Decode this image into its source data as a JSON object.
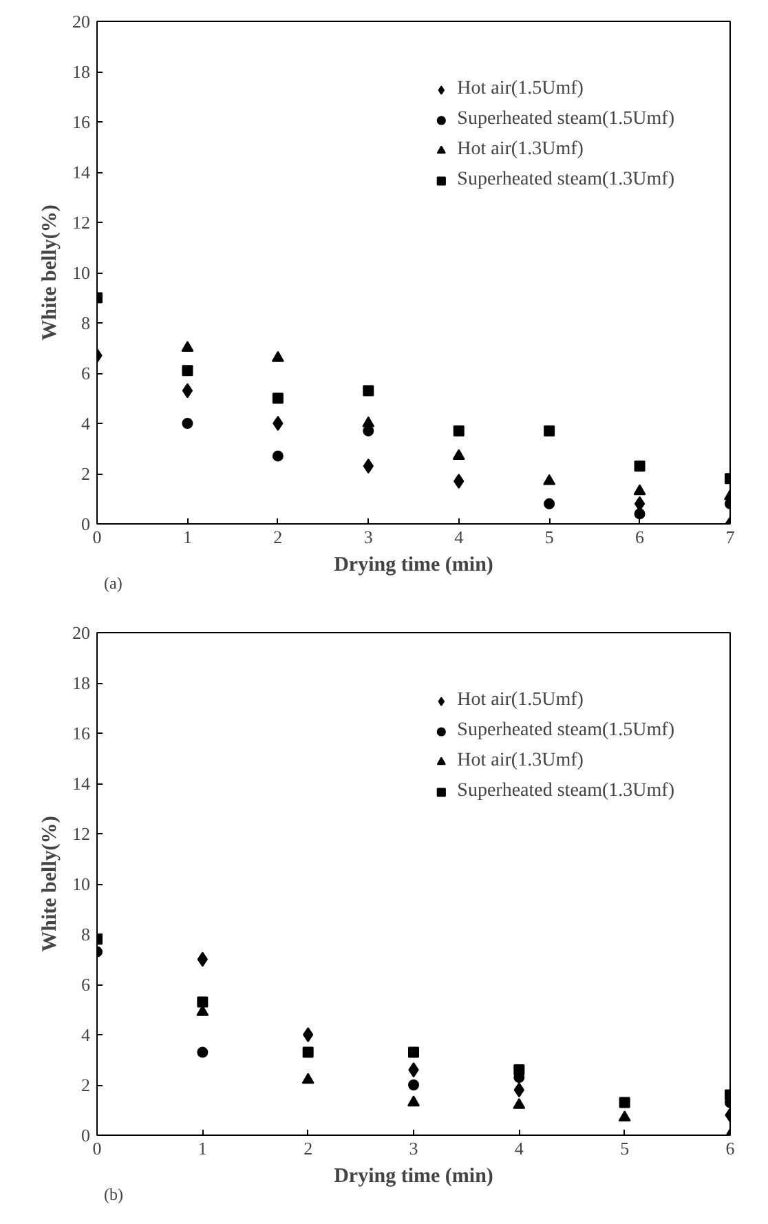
{
  "chart_data": [
    {
      "type": "scatter",
      "xlabel": "Drying time (min)",
      "ylabel": "White belly(%)",
      "annotations": [
        "(a)"
      ],
      "x": [
        0,
        1,
        2,
        3,
        4,
        5,
        6,
        7
      ],
      "xlim": [
        0,
        7
      ],
      "xticks": [
        0,
        1,
        2,
        3,
        4,
        5,
        6,
        7
      ],
      "ylim": [
        0,
        20
      ],
      "yticks": [
        0,
        2,
        4,
        6,
        8,
        10,
        12,
        14,
        16,
        18,
        20
      ],
      "grid": false,
      "legend": "top right",
      "series": [
        {
          "name": "Hot air(1.5Umf)",
          "color": "#000000",
          "marker": "diamond",
          "values": [
            6.7,
            5.3,
            4.0,
            2.3,
            1.7,
            null,
            0.8,
            0.0
          ]
        },
        {
          "name": "Superheated steam(1.5Umf)",
          "color": "#000000",
          "marker": "circle",
          "values": [
            null,
            4.0,
            2.7,
            3.7,
            null,
            0.8,
            0.4,
            0.8
          ]
        },
        {
          "name": "Hot air(1.3Umf)",
          "color": "#000000",
          "marker": "triangle",
          "values": [
            null,
            7.0,
            6.6,
            4.0,
            2.7,
            1.7,
            1.3,
            1.1
          ]
        },
        {
          "name": "Superheated steam(1.3Umf)",
          "color": "#000000",
          "marker": "square",
          "values": [
            9.0,
            6.1,
            5.0,
            5.3,
            3.7,
            3.7,
            2.3,
            1.8
          ]
        }
      ]
    },
    {
      "type": "scatter",
      "xlabel": "Drying time (min)",
      "ylabel": "White belly(%)",
      "annotations": [
        "(b)"
      ],
      "x": [
        0,
        1,
        2,
        3,
        4,
        5,
        6
      ],
      "xlim": [
        0,
        6
      ],
      "xticks": [
        0,
        1,
        2,
        3,
        4,
        5,
        6
      ],
      "ylim": [
        0,
        20
      ],
      "yticks": [
        0,
        2,
        4,
        6,
        8,
        10,
        12,
        14,
        16,
        18,
        20
      ],
      "grid": false,
      "legend": "top right",
      "series": [
        {
          "name": "Hot air(1.5Umf)",
          "color": "#000000",
          "marker": "diamond",
          "values": [
            null,
            7.0,
            4.0,
            2.6,
            1.8,
            null,
            0.8
          ]
        },
        {
          "name": "Superheated steam(1.5Umf)",
          "color": "#000000",
          "marker": "circle",
          "values": [
            7.3,
            3.3,
            null,
            2.0,
            2.3,
            null,
            1.3
          ]
        },
        {
          "name": "Hot air(1.3Umf)",
          "color": "#000000",
          "marker": "triangle",
          "values": [
            null,
            4.9,
            2.2,
            1.3,
            1.2,
            0.7,
            0.0
          ]
        },
        {
          "name": "Superheated steam(1.3Umf)",
          "color": "#000000",
          "marker": "square",
          "values": [
            7.8,
            5.3,
            3.3,
            3.3,
            2.6,
            1.3,
            1.6
          ]
        }
      ]
    }
  ]
}
